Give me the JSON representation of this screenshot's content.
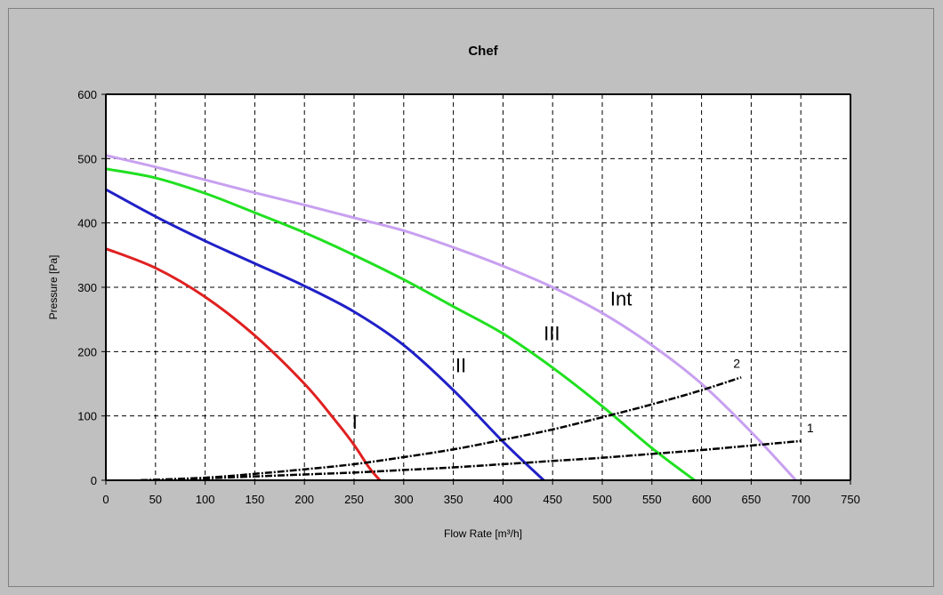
{
  "chart_data": {
    "type": "line",
    "title": "Chef",
    "xlabel": "Flow Rate [m³/h]",
    "ylabel": "Pressure [Pa]",
    "xlim": [
      0,
      750
    ],
    "ylim": [
      0,
      600
    ],
    "xticks": [
      "0",
      "50",
      "100",
      "150",
      "200",
      "250",
      "300",
      "350",
      "400",
      "450",
      "500",
      "550",
      "600",
      "650",
      "700",
      "750"
    ],
    "yticks": [
      "0",
      "100",
      "200",
      "300",
      "400",
      "500",
      "600"
    ],
    "grid": true,
    "series": [
      {
        "name": "I",
        "color": "#e02020",
        "label_at": [
          248,
          80
        ],
        "points": [
          [
            0,
            360
          ],
          [
            50,
            330
          ],
          [
            100,
            285
          ],
          [
            150,
            225
          ],
          [
            200,
            150
          ],
          [
            230,
            95
          ],
          [
            250,
            55
          ],
          [
            265,
            20
          ],
          [
            276,
            0
          ]
        ]
      },
      {
        "name": "II",
        "color": "#2020c8",
        "label_at": [
          352,
          168
        ],
        "points": [
          [
            0,
            452
          ],
          [
            50,
            410
          ],
          [
            100,
            372
          ],
          [
            150,
            337
          ],
          [
            200,
            302
          ],
          [
            250,
            262
          ],
          [
            300,
            210
          ],
          [
            350,
            140
          ],
          [
            400,
            60
          ],
          [
            441,
            0
          ]
        ]
      },
      {
        "name": "III",
        "color": "#20e020",
        "label_at": [
          441,
          218
        ],
        "points": [
          [
            0,
            484
          ],
          [
            50,
            470
          ],
          [
            100,
            446
          ],
          [
            150,
            416
          ],
          [
            200,
            385
          ],
          [
            250,
            350
          ],
          [
            300,
            312
          ],
          [
            350,
            270
          ],
          [
            400,
            228
          ],
          [
            450,
            175
          ],
          [
            500,
            115
          ],
          [
            550,
            50
          ],
          [
            593,
            0
          ]
        ]
      },
      {
        "name": "Int",
        "color": "#c8a0f0",
        "label_at": [
          508,
          272
        ],
        "points": [
          [
            0,
            505
          ],
          [
            50,
            487
          ],
          [
            100,
            467
          ],
          [
            150,
            447
          ],
          [
            200,
            428
          ],
          [
            250,
            408
          ],
          [
            300,
            388
          ],
          [
            350,
            362
          ],
          [
            400,
            333
          ],
          [
            450,
            300
          ],
          [
            500,
            260
          ],
          [
            550,
            210
          ],
          [
            600,
            150
          ],
          [
            650,
            75
          ],
          [
            695,
            0
          ]
        ]
      },
      {
        "name": "1",
        "color": "#000000",
        "dashed": true,
        "label_at": [
          706,
          75
        ],
        "points": [
          [
            35,
            0
          ],
          [
            100,
            3
          ],
          [
            150,
            6
          ],
          [
            200,
            9
          ],
          [
            250,
            12
          ],
          [
            300,
            16
          ],
          [
            350,
            20
          ],
          [
            400,
            25
          ],
          [
            450,
            30
          ],
          [
            500,
            35
          ],
          [
            550,
            41
          ],
          [
            600,
            47
          ],
          [
            650,
            54
          ],
          [
            700,
            61
          ]
        ]
      },
      {
        "name": "2",
        "color": "#000000",
        "dashed": true,
        "label_at": [
          632,
          175
        ],
        "points": [
          [
            35,
            0
          ],
          [
            100,
            4
          ],
          [
            150,
            10
          ],
          [
            200,
            17
          ],
          [
            250,
            25
          ],
          [
            300,
            36
          ],
          [
            350,
            48
          ],
          [
            400,
            63
          ],
          [
            450,
            79
          ],
          [
            500,
            98
          ],
          [
            550,
            118
          ],
          [
            600,
            140
          ],
          [
            640,
            160
          ]
        ]
      }
    ]
  }
}
